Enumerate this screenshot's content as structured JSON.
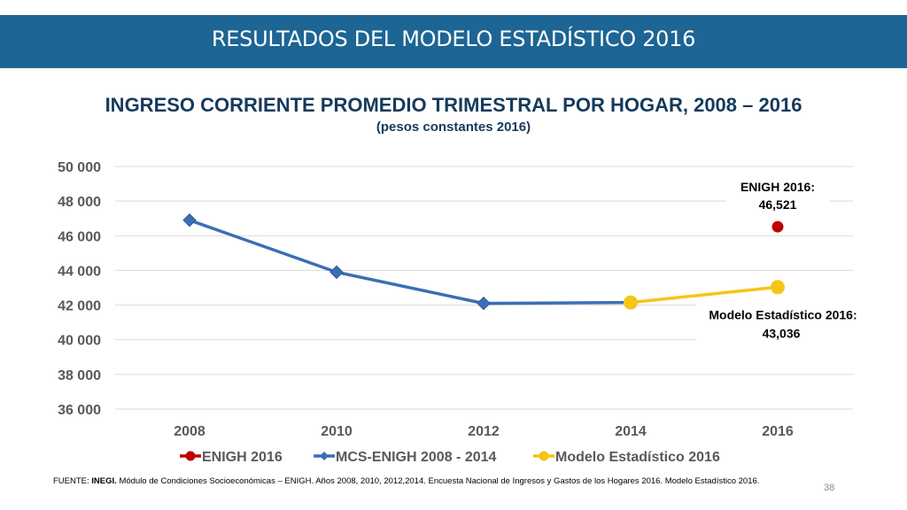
{
  "slide": {
    "title": "RESULTADOS DEL MODELO ESTADÍSTICO 2016",
    "source_label": "FUENTE:",
    "source_org": "INEGI.",
    "source_text": "Módulo de Condiciones Socioeconómicas – ENIGH. Años 2008, 2010, 2012,2014. Encuesta Nacional de Ingresos y Gastos de los Hogares 2016. Modelo Estadístico 2016.",
    "page_number": "38",
    "banner_color": "#1d6594"
  },
  "chart_data": {
    "type": "line",
    "title": "INGRESO CORRIENTE PROMEDIO TRIMESTRAL POR HOGAR, 2008 – 2016",
    "subtitle": "(pesos constantes 2016)",
    "xlabel": "",
    "ylabel": "",
    "categories": [
      "2008",
      "2010",
      "2012",
      "2014",
      "2016"
    ],
    "ylim": [
      36000,
      50000
    ],
    "yticks": [
      36000,
      38000,
      40000,
      42000,
      44000,
      46000,
      48000,
      50000
    ],
    "ytick_labels": [
      "36 000",
      "38 000",
      "40 000",
      "42 000",
      "44 000",
      "46 000",
      "48 000",
      "50 000"
    ],
    "grid": true,
    "legend_position": "bottom",
    "series": [
      {
        "name": "ENIGH 2016",
        "color": "#c00000",
        "marker": "circle",
        "values": [
          null,
          null,
          null,
          null,
          46521
        ]
      },
      {
        "name": "MCS-ENIGH 2008 - 2014",
        "color": "#3a6fb5",
        "marker": "diamond",
        "values": [
          46900,
          43900,
          42100,
          42150,
          null
        ]
      },
      {
        "name": "Modelo Estadístico 2016",
        "color": "#f5c518",
        "marker": "circle",
        "values": [
          null,
          null,
          null,
          42150,
          43036
        ]
      }
    ],
    "annotations": [
      {
        "line1": "ENIGH 2016:",
        "line2": "46,521",
        "series": "ENIGH 2016",
        "placement": "above"
      },
      {
        "line1": "Modelo Estadístico 2016:",
        "line2": "43,036",
        "series": "Modelo Estadístico 2016",
        "placement": "below"
      }
    ]
  }
}
